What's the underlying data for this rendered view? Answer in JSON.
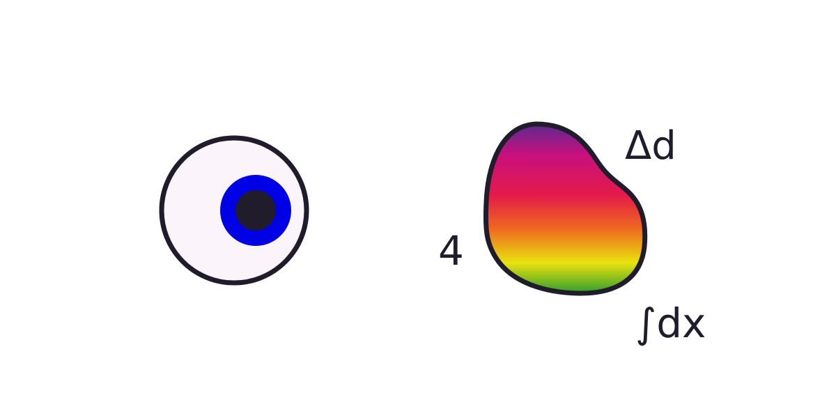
{
  "labels": {
    "four": "4",
    "delta_d": "Δd",
    "integral_dx": "∫dx"
  },
  "colors": {
    "outline": "#201c2b",
    "eye_white": "#fbf4fb",
    "iris": "#0000e6",
    "pupil": "#201c2b",
    "gradient_stops": [
      "#5b2a8f",
      "#c8107e",
      "#e31a4a",
      "#ee6a1f",
      "#e9e20f",
      "#2f9c2e"
    ]
  },
  "icons": [
    "eye-icon",
    "rainbow-blob-shape"
  ]
}
